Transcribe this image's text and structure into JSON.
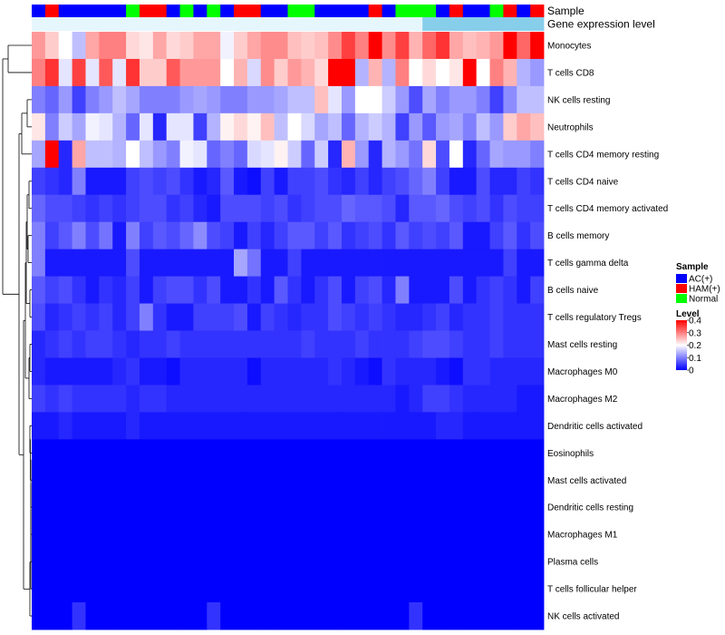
{
  "chart_data": {
    "type": "heatmap",
    "title": "",
    "color_scale": {
      "low": "#0000ff",
      "mid": "#ffffff",
      "high": "#ff0000",
      "range": [
        0,
        0.4
      ],
      "midpoint": 0.2
    },
    "annotation_rows": [
      {
        "name": "Sample",
        "label": "Sample"
      },
      {
        "name": "Gene expression level",
        "label": "Gene expression level"
      }
    ],
    "sample_colors": {
      "AC(+)": "#0000ff",
      "HAM(+)": "#ff0000",
      "Normal": "#00ff00"
    },
    "gene_expression_color": "#87ceeb",
    "sample_groups": [
      "AC(+)",
      "HAM(+)",
      "AC(+)",
      "AC(+)",
      "AC(+)",
      "AC(+)",
      "AC(+)",
      "Normal",
      "HAM(+)",
      "HAM(+)",
      "AC(+)",
      "Normal",
      "AC(+)",
      "Normal",
      "AC(+)",
      "HAM(+)",
      "HAM(+)",
      "AC(+)",
      "AC(+)",
      "Normal",
      "Normal",
      "AC(+)",
      "AC(+)",
      "AC(+)",
      "AC(+)",
      "HAM(+)",
      "AC(+)",
      "Normal",
      "Normal",
      "Normal",
      "AC(+)",
      "HAM(+)",
      "AC(+)",
      "AC(+)",
      "Normal",
      "HAM(+)",
      "AC(+)",
      "HAM(+)"
    ],
    "gene_expression_values": [
      0,
      0,
      0,
      0,
      0,
      0,
      0,
      0,
      0,
      0,
      0,
      0,
      0,
      0,
      0,
      0,
      0,
      0,
      0,
      0,
      0,
      0,
      0,
      0,
      0,
      0,
      0,
      0,
      0,
      0.5,
      0.5,
      0.5,
      0.5,
      0.5,
      0.5,
      0.5,
      0.5,
      0.5
    ],
    "rows": [
      {
        "name": "Monocytes",
        "values": [
          0.28,
          0.24,
          0.2,
          0.15,
          0.27,
          0.3,
          0.3,
          0.23,
          0.22,
          0.27,
          0.23,
          0.24,
          0.27,
          0.27,
          0.19,
          0.24,
          0.27,
          0.29,
          0.29,
          0.25,
          0.24,
          0.25,
          0.29,
          0.35,
          0.3,
          0.4,
          0.29,
          0.35,
          0.26,
          0.32,
          0.36,
          0.27,
          0.25,
          0.26,
          0.28,
          0.4,
          0.32,
          0.4
        ]
      },
      {
        "name": "T cells CD8",
        "values": [
          0.3,
          0.36,
          0.18,
          0.35,
          0.18,
          0.33,
          0.18,
          0.36,
          0.24,
          0.24,
          0.33,
          0.28,
          0.28,
          0.28,
          0.2,
          0.26,
          0.17,
          0.29,
          0.24,
          0.28,
          0.26,
          0.23,
          0.4,
          0.4,
          0.14,
          0.26,
          0.14,
          0.3,
          0.2,
          0.23,
          0.2,
          0.22,
          0.4,
          0.2,
          0.3,
          0.26,
          0.14,
          0.12
        ]
      },
      {
        "name": "NK cells resting",
        "values": [
          0.1,
          0.08,
          0.12,
          0.05,
          0.1,
          0.12,
          0.15,
          0.13,
          0.1,
          0.1,
          0.1,
          0.12,
          0.13,
          0.12,
          0.1,
          0.1,
          0.12,
          0.12,
          0.13,
          0.15,
          0.15,
          0.25,
          0.18,
          0.12,
          0.2,
          0.2,
          0.16,
          0.12,
          0.06,
          0.13,
          0.1,
          0.12,
          0.12,
          0.1,
          0.05,
          0.11,
          0.15,
          0.15
        ]
      },
      {
        "name": "Neutrophils",
        "values": [
          0.22,
          0.1,
          0.16,
          0.13,
          0.19,
          0.18,
          0.14,
          0.08,
          0.18,
          0.03,
          0.18,
          0.18,
          0.05,
          0.14,
          0.21,
          0.23,
          0.21,
          0.25,
          0.15,
          0.2,
          0.17,
          0.13,
          0.15,
          0.08,
          0.14,
          0.16,
          0.14,
          0.05,
          0.12,
          0.07,
          0.12,
          0.13,
          0.1,
          0.15,
          0.12,
          0.24,
          0.27,
          0.25
        ]
      },
      {
        "name": "T cells CD4 memory resting",
        "values": [
          0.13,
          0.4,
          0.03,
          0.27,
          0.15,
          0.15,
          0.14,
          0.2,
          0.15,
          0.12,
          0.1,
          0.19,
          0.18,
          0.08,
          0.1,
          0.08,
          0.17,
          0.18,
          0.21,
          0.16,
          0.08,
          0.16,
          0.03,
          0.26,
          0.12,
          0.03,
          0.14,
          0.12,
          0.09,
          0.23,
          0.06,
          0.2,
          0.03,
          0.08,
          0.13,
          0.12,
          0.12,
          0.1
        ]
      },
      {
        "name": "T cells CD4 naive",
        "values": [
          0.05,
          0.04,
          0.03,
          0.1,
          0.02,
          0.02,
          0.02,
          0.05,
          0.06,
          0.05,
          0.06,
          0.04,
          0.02,
          0.03,
          0.07,
          0.02,
          0.01,
          0.05,
          0.02,
          0.05,
          0.05,
          0.06,
          0.04,
          0.03,
          0.05,
          0.03,
          0.05,
          0.06,
          0.08,
          0.1,
          0.05,
          0.02,
          0.02,
          0.06,
          0.03,
          0.03,
          0.05,
          0.04
        ]
      },
      {
        "name": "T cells CD4 memory activated",
        "values": [
          0.08,
          0.06,
          0.06,
          0.05,
          0.04,
          0.05,
          0.04,
          0.05,
          0.06,
          0.06,
          0.04,
          0.05,
          0.03,
          0.02,
          0.06,
          0.06,
          0.06,
          0.05,
          0.06,
          0.04,
          0.05,
          0.06,
          0.06,
          0.08,
          0.07,
          0.07,
          0.06,
          0.03,
          0.07,
          0.07,
          0.08,
          0.06,
          0.05,
          0.06,
          0.04,
          0.06,
          0.05,
          0.05
        ]
      },
      {
        "name": "B cells memory",
        "values": [
          0.1,
          0.05,
          0.07,
          0.1,
          0.06,
          0.09,
          0.02,
          0.1,
          0.05,
          0.07,
          0.06,
          0.08,
          0.11,
          0.06,
          0.05,
          0.02,
          0.05,
          0.03,
          0.05,
          0.07,
          0.07,
          0.05,
          0.07,
          0.04,
          0.05,
          0.06,
          0.04,
          0.07,
          0.05,
          0.06,
          0.05,
          0.07,
          0.02,
          0.02,
          0.05,
          0.07,
          0.04,
          0.06
        ]
      },
      {
        "name": "T cells gamma delta",
        "values": [
          0.1,
          0.02,
          0.02,
          0.02,
          0.02,
          0.02,
          0.02,
          0.06,
          0.02,
          0.02,
          0.02,
          0.02,
          0.02,
          0.02,
          0.02,
          0.13,
          0.09,
          0.02,
          0.02,
          0.05,
          0.02,
          0.02,
          0.02,
          0.02,
          0.02,
          0.02,
          0.02,
          0.02,
          0.02,
          0.02,
          0.02,
          0.02,
          0.02,
          0.02,
          0.02,
          0.05,
          0.02,
          0.02
        ]
      },
      {
        "name": "B cells naive",
        "values": [
          0.07,
          0.05,
          0.06,
          0.04,
          0.02,
          0.04,
          0.03,
          0.05,
          0.02,
          0.05,
          0.06,
          0.06,
          0.04,
          0.06,
          0.02,
          0.02,
          0.04,
          0.02,
          0.07,
          0.04,
          0.02,
          0.04,
          0.06,
          0.02,
          0.05,
          0.06,
          0.03,
          0.1,
          0.02,
          0.02,
          0.02,
          0.06,
          0.02,
          0.04,
          0.05,
          0.04,
          0.02,
          0.05
        ]
      },
      {
        "name": "T cells regulatory  Tregs",
        "values": [
          0.06,
          0.03,
          0.04,
          0.05,
          0.04,
          0.05,
          0.03,
          0.05,
          0.1,
          0.04,
          0.02,
          0.02,
          0.05,
          0.05,
          0.05,
          0.06,
          0.02,
          0.05,
          0.04,
          0.03,
          0.04,
          0.04,
          0.06,
          0.05,
          0.04,
          0.05,
          0.04,
          0.03,
          0.03,
          0.04,
          0.05,
          0.03,
          0.04,
          0.04,
          0.05,
          0.04,
          0.04,
          0.04
        ]
      },
      {
        "name": "Mast cells resting",
        "values": [
          0.03,
          0.04,
          0.05,
          0.04,
          0.05,
          0.05,
          0.04,
          0.03,
          0.04,
          0.04,
          0.05,
          0.04,
          0.04,
          0.04,
          0.04,
          0.04,
          0.04,
          0.04,
          0.04,
          0.04,
          0.05,
          0.04,
          0.04,
          0.04,
          0.05,
          0.04,
          0.04,
          0.04,
          0.05,
          0.06,
          0.06,
          0.05,
          0.04,
          0.04,
          0.05,
          0.04,
          0.04,
          0.04
        ]
      },
      {
        "name": "Macrophages M0",
        "values": [
          0.03,
          0.02,
          0.02,
          0.02,
          0.02,
          0.02,
          0.03,
          0.04,
          0.02,
          0.02,
          0.01,
          0.03,
          0.03,
          0.03,
          0.03,
          0.03,
          0.01,
          0.03,
          0.03,
          0.03,
          0.03,
          0.03,
          0.04,
          0.03,
          0.02,
          0.01,
          0.04,
          0.03,
          0.03,
          0.03,
          0.02,
          0.01,
          0.04,
          0.04,
          0.03,
          0.03,
          0.03,
          0.03
        ]
      },
      {
        "name": "Macrophages M2",
        "values": [
          0.05,
          0.04,
          0.05,
          0.04,
          0.04,
          0.04,
          0.04,
          0.03,
          0.04,
          0.04,
          0.03,
          0.03,
          0.03,
          0.03,
          0.03,
          0.03,
          0.03,
          0.03,
          0.03,
          0.03,
          0.03,
          0.03,
          0.03,
          0.03,
          0.03,
          0.03,
          0.03,
          0.02,
          0.03,
          0.05,
          0.05,
          0.04,
          0.03,
          0.03,
          0.03,
          0.03,
          0.02,
          0.02
        ]
      },
      {
        "name": "Dendritic cells activated",
        "values": [
          0.02,
          0.02,
          0.03,
          0.02,
          0.02,
          0.02,
          0.02,
          0.03,
          0.02,
          0.02,
          0.02,
          0.02,
          0.02,
          0.02,
          0.02,
          0.02,
          0.02,
          0.02,
          0.02,
          0.02,
          0.02,
          0.02,
          0.02,
          0.02,
          0.02,
          0.02,
          0.02,
          0.02,
          0.02,
          0.02,
          0.03,
          0.03,
          0.02,
          0.02,
          0.02,
          0.02,
          0.02,
          0.02
        ]
      },
      {
        "name": "Eosinophils",
        "values": [
          0,
          0,
          0,
          0,
          0,
          0,
          0,
          0,
          0,
          0,
          0,
          0,
          0,
          0,
          0,
          0,
          0,
          0,
          0,
          0,
          0,
          0,
          0,
          0,
          0,
          0,
          0,
          0,
          0,
          0,
          0,
          0,
          0,
          0,
          0,
          0,
          0,
          0
        ]
      },
      {
        "name": "Mast cells activated",
        "values": [
          0,
          0,
          0,
          0,
          0,
          0,
          0,
          0,
          0,
          0,
          0,
          0,
          0,
          0,
          0,
          0,
          0,
          0,
          0,
          0,
          0,
          0,
          0,
          0,
          0,
          0,
          0,
          0,
          0,
          0,
          0,
          0,
          0,
          0,
          0,
          0,
          0,
          0
        ]
      },
      {
        "name": "Dendritic cells resting",
        "values": [
          0,
          0,
          0,
          0,
          0,
          0,
          0,
          0,
          0,
          0,
          0,
          0,
          0,
          0,
          0,
          0,
          0,
          0,
          0,
          0,
          0,
          0,
          0,
          0,
          0,
          0,
          0,
          0,
          0,
          0,
          0,
          0,
          0,
          0,
          0,
          0,
          0,
          0
        ]
      },
      {
        "name": "Macrophages M1",
        "values": [
          0,
          0,
          0,
          0,
          0,
          0,
          0,
          0,
          0,
          0,
          0,
          0,
          0,
          0,
          0,
          0,
          0,
          0,
          0,
          0,
          0,
          0,
          0,
          0,
          0,
          0,
          0,
          0,
          0,
          0,
          0,
          0,
          0,
          0,
          0,
          0,
          0,
          0
        ]
      },
      {
        "name": "Plasma cells",
        "values": [
          0,
          0,
          0,
          0,
          0,
          0,
          0,
          0,
          0,
          0,
          0,
          0,
          0,
          0,
          0,
          0,
          0,
          0,
          0,
          0,
          0,
          0,
          0,
          0,
          0,
          0,
          0,
          0,
          0,
          0,
          0,
          0,
          0,
          0,
          0,
          0,
          0,
          0
        ]
      },
      {
        "name": "T cells follicular helper",
        "values": [
          0,
          0,
          0,
          0,
          0,
          0,
          0,
          0,
          0,
          0,
          0,
          0,
          0,
          0,
          0,
          0,
          0,
          0,
          0,
          0,
          0,
          0,
          0,
          0,
          0,
          0,
          0,
          0,
          0,
          0,
          0,
          0,
          0,
          0,
          0,
          0,
          0,
          0
        ]
      },
      {
        "name": "NK cells activated",
        "values": [
          0,
          0,
          0,
          0.04,
          0,
          0,
          0,
          0,
          0,
          0,
          0,
          0,
          0,
          0.04,
          0,
          0,
          0,
          0,
          0,
          0,
          0,
          0,
          0,
          0,
          0,
          0,
          0,
          0,
          0.04,
          0,
          0,
          0,
          0,
          0,
          0,
          0,
          0,
          0
        ]
      }
    ],
    "legend": {
      "sample": {
        "title": "Sample",
        "items": [
          "AC(+)",
          "HAM(+)",
          "Normal"
        ]
      },
      "level": {
        "title": "Level",
        "ticks": [
          "0.4",
          "0.3",
          "0.2",
          "0.1",
          "0"
        ],
        "tick_values": [
          0.4,
          0.3,
          0.2,
          0.1,
          0
        ]
      }
    }
  }
}
